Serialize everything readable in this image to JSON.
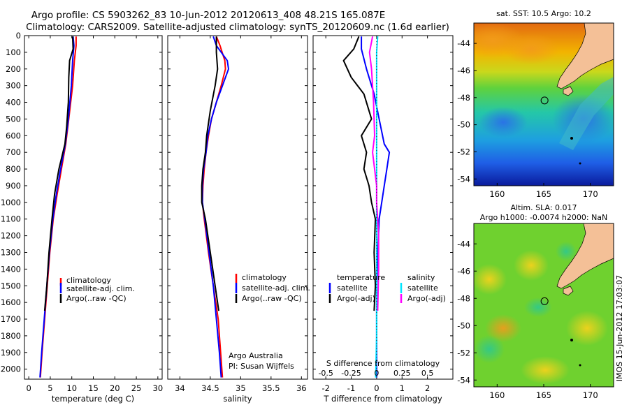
{
  "title_line1": "Argo profile: CS 5903262_83 10-Jun-2012 20120613_408 48.21S 165.087E",
  "title_line2": "Climatology: CARS2009. Satellite-adjusted climatology: synTS_20120609.nc (1.6d earlier)",
  "side_stamp": "IMOS 15-Jun-2012 17:03:07",
  "colors": {
    "climatology": "#ff0000",
    "satellite": "#0000ff",
    "argo": "#000000",
    "salinity_sat": "#00e5ff",
    "salinity_argo": "#ff00ff"
  },
  "credits": {
    "line1": "Argo Australia",
    "line2": "PI: Susan Wijffels"
  },
  "chart_data": [
    {
      "type": "line",
      "xlabel": "temperature (deg C)",
      "ylim": [
        2060,
        0
      ],
      "xlim": [
        -1,
        31
      ],
      "xticks": [
        "0",
        "5",
        "10",
        "15",
        "20",
        "25",
        "30"
      ],
      "yticks": [
        "0",
        "100",
        "200",
        "300",
        "400",
        "500",
        "600",
        "700",
        "800",
        "900",
        "1000",
        "1100",
        "1200",
        "1300",
        "1400",
        "1500",
        "1600",
        "1700",
        "1800",
        "1900",
        "2000"
      ],
      "legend": [
        "climatology",
        "satellite-adj. clim.",
        "Argo(..raw -QC)"
      ],
      "series": [
        {
          "name": "climatology",
          "color": "#ff0000",
          "points": [
            [
              11.0,
              5
            ],
            [
              11.0,
              60
            ],
            [
              10.6,
              150
            ],
            [
              10.2,
              300
            ],
            [
              9.3,
              500
            ],
            [
              8.6,
              650
            ],
            [
              7.6,
              800
            ],
            [
              6.6,
              950
            ],
            [
              5.7,
              1100
            ],
            [
              4.9,
              1300
            ],
            [
              4.3,
              1500
            ],
            [
              3.7,
              1700
            ],
            [
              3.1,
              1900
            ],
            [
              2.7,
              2050
            ]
          ]
        },
        {
          "name": "satellite-adj. clim.",
          "color": "#0000ff",
          "points": [
            [
              10.3,
              5
            ],
            [
              10.5,
              60
            ],
            [
              10.2,
              150
            ],
            [
              9.9,
              300
            ],
            [
              9.2,
              500
            ],
            [
              8.5,
              650
            ],
            [
              7.4,
              800
            ],
            [
              6.4,
              950
            ],
            [
              5.6,
              1100
            ],
            [
              4.8,
              1300
            ],
            [
              4.2,
              1500
            ],
            [
              3.6,
              1700
            ],
            [
              3.0,
              1900
            ],
            [
              2.6,
              2050
            ]
          ]
        },
        {
          "name": "Argo(..raw -QC)",
          "color": "#000000",
          "points": [
            [
              10.2,
              5
            ],
            [
              10.3,
              80
            ],
            [
              9.5,
              150
            ],
            [
              9.3,
              250
            ],
            [
              9.2,
              400
            ],
            [
              8.8,
              550
            ],
            [
              8.4,
              650
            ],
            [
              7.0,
              800
            ],
            [
              6.0,
              950
            ],
            [
              5.4,
              1100
            ],
            [
              4.7,
              1300
            ],
            [
              4.2,
              1500
            ],
            [
              3.7,
              1650
            ]
          ]
        }
      ]
    },
    {
      "type": "line",
      "xlabel": "salinity",
      "ylim": [
        2060,
        0
      ],
      "xlim": [
        33.8,
        36.1
      ],
      "xticks": [
        "34",
        "34.5",
        "35",
        "35.5",
        "36"
      ],
      "legend": [
        "climatology",
        "satellite-adj. clim.",
        "Argo(..raw -QC)"
      ],
      "series": [
        {
          "name": "climatology",
          "color": "#ff0000",
          "points": [
            [
              34.6,
              5
            ],
            [
              34.66,
              60
            ],
            [
              34.74,
              150
            ],
            [
              34.75,
              200
            ],
            [
              34.68,
              300
            ],
            [
              34.6,
              400
            ],
            [
              34.52,
              500
            ],
            [
              34.47,
              600
            ],
            [
              34.43,
              700
            ],
            [
              34.4,
              800
            ],
            [
              34.38,
              900
            ],
            [
              34.37,
              1000
            ],
            [
              34.4,
              1100
            ],
            [
              34.47,
              1300
            ],
            [
              34.55,
              1500
            ],
            [
              34.63,
              1700
            ],
            [
              34.67,
              1900
            ],
            [
              34.7,
              2050
            ]
          ]
        },
        {
          "name": "satellite-adj. clim.",
          "color": "#0000ff",
          "points": [
            [
              34.55,
              5
            ],
            [
              34.6,
              60
            ],
            [
              34.78,
              150
            ],
            [
              34.8,
              200
            ],
            [
              34.7,
              300
            ],
            [
              34.6,
              400
            ],
            [
              34.52,
              500
            ],
            [
              34.46,
              600
            ],
            [
              34.43,
              700
            ],
            [
              34.39,
              800
            ],
            [
              34.37,
              900
            ],
            [
              34.37,
              1000
            ],
            [
              34.41,
              1100
            ],
            [
              34.48,
              1300
            ],
            [
              34.55,
              1500
            ],
            [
              34.6,
              1700
            ],
            [
              34.65,
              1900
            ],
            [
              34.68,
              2050
            ]
          ]
        },
        {
          "name": "Argo(..raw -QC)",
          "color": "#000000",
          "points": [
            [
              34.6,
              5
            ],
            [
              34.6,
              100
            ],
            [
              34.62,
              200
            ],
            [
              34.58,
              300
            ],
            [
              34.5,
              450
            ],
            [
              34.44,
              600
            ],
            [
              34.42,
              700
            ],
            [
              34.38,
              800
            ],
            [
              34.36,
              900
            ],
            [
              34.36,
              1000
            ],
            [
              34.42,
              1100
            ],
            [
              34.5,
              1300
            ],
            [
              34.58,
              1500
            ],
            [
              34.64,
              1650
            ]
          ]
        }
      ]
    },
    {
      "type": "line",
      "xlabel": "T difference from climatology",
      "secondary_xlabel": "S difference from climatology",
      "ylim": [
        2060,
        0
      ],
      "xlim": [
        -2.5,
        3
      ],
      "xticks": [
        "-2",
        "-1",
        "0",
        "1",
        "2"
      ],
      "secondary_xticks": [
        "-0.5",
        "-0.25",
        "0",
        "0.25",
        "0.5"
      ],
      "legend_groups": [
        {
          "heading": "temperature",
          "entries": [
            "satellite",
            "Argo(-adj)"
          ]
        },
        {
          "heading": "salinity",
          "entries": [
            "satellite",
            "Argo(-adj)"
          ]
        }
      ],
      "series": [
        {
          "name": "satellite",
          "group": "temperature",
          "color": "#0000ff",
          "points": [
            [
              -0.6,
              5
            ],
            [
              -0.6,
              80
            ],
            [
              -0.4,
              200
            ],
            [
              -0.1,
              350
            ],
            [
              0.1,
              500
            ],
            [
              0.3,
              650
            ],
            [
              0.5,
              700
            ],
            [
              0.4,
              800
            ],
            [
              0.3,
              900
            ],
            [
              0.2,
              1000
            ],
            [
              0.1,
              1100
            ],
            [
              0.05,
              1300
            ],
            [
              0.0,
              1500
            ],
            [
              0.0,
              1700
            ],
            [
              0.0,
              1900
            ],
            [
              0.0,
              2050
            ]
          ]
        },
        {
          "name": "Argo(-adj)",
          "group": "temperature",
          "color": "#000000",
          "points": [
            [
              -0.7,
              5
            ],
            [
              -0.9,
              80
            ],
            [
              -1.3,
              150
            ],
            [
              -1.0,
              250
            ],
            [
              -0.5,
              350
            ],
            [
              -0.2,
              500
            ],
            [
              -0.6,
              600
            ],
            [
              -0.4,
              700
            ],
            [
              -0.5,
              800
            ],
            [
              -0.3,
              900
            ],
            [
              -0.2,
              1000
            ],
            [
              -0.05,
              1100
            ],
            [
              -0.1,
              1300
            ],
            [
              -0.05,
              1500
            ],
            [
              -0.1,
              1650
            ]
          ]
        },
        {
          "name": "satellite",
          "group": "salinity",
          "color": "#00e5ff",
          "points": [
            [
              0.01,
              5
            ],
            [
              0.0,
              100
            ],
            [
              0.0,
              200
            ],
            [
              0.0,
              400
            ],
            [
              0.0,
              600
            ],
            [
              0.0,
              800
            ],
            [
              0.0,
              1000
            ],
            [
              0.0,
              1200
            ],
            [
              0.0,
              1400
            ],
            [
              0.0,
              1600
            ],
            [
              0.0,
              1800
            ],
            [
              -0.01,
              2050
            ]
          ]
        },
        {
          "name": "Argo(-adj)",
          "group": "salinity",
          "color": "#ff00ff",
          "points": [
            [
              -0.04,
              5
            ],
            [
              -0.07,
              100
            ],
            [
              -0.05,
              200
            ],
            [
              -0.03,
              400
            ],
            [
              -0.02,
              600
            ],
            [
              -0.04,
              700
            ],
            [
              -0.02,
              800
            ],
            [
              0.0,
              900
            ],
            [
              0.0,
              1000
            ],
            [
              0.02,
              1200
            ],
            [
              0.02,
              1400
            ],
            [
              0.01,
              1650
            ]
          ]
        }
      ]
    }
  ],
  "maps": [
    {
      "title_lines": [
        "sat. SST: 10.5 Argo: 10.2"
      ],
      "xticks": [
        "160",
        "165",
        "170"
      ],
      "yticks": [
        "-44",
        "-46",
        "-48",
        "-50",
        "-52",
        "-54"
      ],
      "lon_range": [
        157.5,
        172.5
      ],
      "lat_range": [
        -54.5,
        -42.5
      ],
      "argo_position": [
        165.087,
        -48.21
      ]
    },
    {
      "title_lines": [
        "Altim. SLA: 0.017",
        "Argo h1000: -0.0074 h2000: NaN"
      ],
      "xticks": [
        "160",
        "165",
        "170"
      ],
      "yticks": [
        "-44",
        "-46",
        "-48",
        "-50",
        "-52",
        "-54"
      ],
      "lon_range": [
        157.5,
        172.5
      ],
      "lat_range": [
        -54.5,
        -42.5
      ],
      "argo_position": [
        165.087,
        -48.21
      ]
    }
  ]
}
